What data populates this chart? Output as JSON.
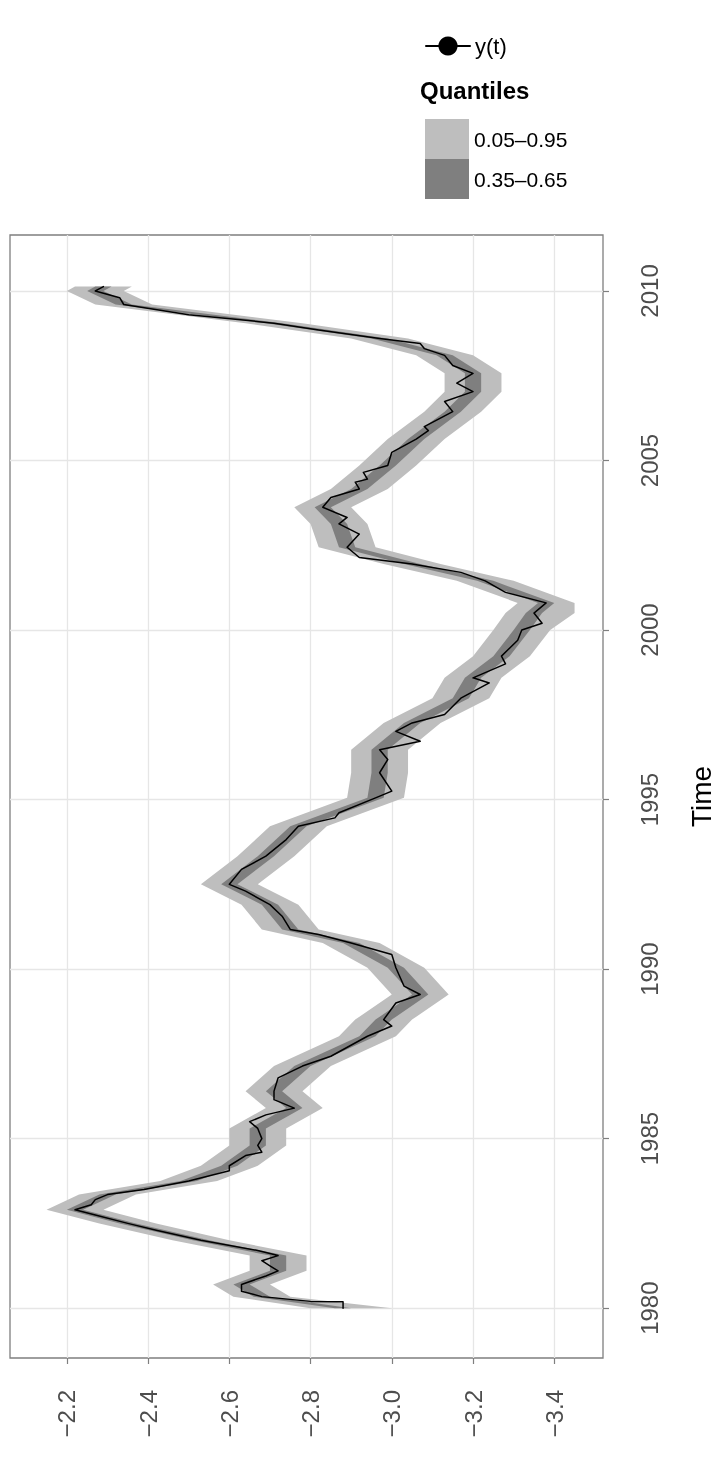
{
  "chart_data": {
    "type": "line",
    "orientation": "horizontal",
    "ylabel": "Time",
    "legend_title": "Quantiles",
    "ylim": [
      1978.53,
      2011.65
    ],
    "yticks": [
      1980,
      1985,
      1990,
      1995,
      2000,
      2005,
      2010
    ],
    "xlim": [
      -2.06,
      -3.52
    ],
    "xticks": [
      {
        "value": -2.2,
        "label": "−2.2"
      },
      {
        "value": -2.4,
        "label": "−2.4"
      },
      {
        "value": -2.6,
        "label": "−2.6"
      },
      {
        "value": -2.8,
        "label": "−2.8"
      },
      {
        "value": -3.0,
        "label": "−3.0"
      },
      {
        "value": -3.2,
        "label": "−3.2"
      },
      {
        "value": -3.4,
        "label": "−3.4"
      }
    ],
    "grid": true,
    "legend": "top right",
    "line_style": "solid",
    "series": [
      {
        "name": "y(t)",
        "color": "#000000",
        "x": [
          1980.0,
          1980.19,
          1980.2,
          1980.34,
          1980.5,
          1980.7,
          1980.95,
          1981.1,
          1981.25,
          1981.4,
          1981.55,
          1981.7,
          1982.0,
          1982.3,
          1982.5,
          1982.75,
          1982.9,
          1983.05,
          1983.2,
          1983.35,
          1983.5,
          1983.75,
          1984.05,
          1984.2,
          1984.5,
          1984.6,
          1984.8,
          1985.0,
          1985.3,
          1985.5,
          1985.7,
          1985.9,
          1986.15,
          1986.4,
          1986.79,
          1987.14,
          1987.43,
          1988.02,
          1988.32,
          1988.51,
          1989.0,
          1989.25,
          1989.5,
          1990.04,
          1990.43,
          1990.77,
          1991.02,
          1991.17,
          1991.56,
          1991.9,
          1992.3,
          1992.5,
          1992.94,
          1993.33,
          1993.82,
          1994.21,
          1994.46,
          1994.61,
          1995.05,
          1995.25,
          1995.79,
          1996.18,
          1996.47,
          1996.72,
          1997.01,
          1997.26,
          1997.51,
          1997.99,
          1998.44,
          1998.59,
          1999.0,
          1999.23,
          1999.7,
          2000.0,
          2000.2,
          2000.5,
          2000.8,
          2001.11,
          2001.45,
          2001.7,
          2001.95,
          2002.14,
          2002.44,
          2002.83,
          2003.13,
          2003.32,
          2003.62,
          2003.91,
          2004.16,
          2004.36,
          2004.45,
          2004.65,
          2004.85,
          2005.24,
          2005.63,
          2005.88,
          2006.0,
          2006.44,
          2006.74,
          2007.03,
          2007.28,
          2007.57,
          2007.8,
          2008.1,
          2008.3,
          2008.45,
          2008.6,
          2008.85,
          2009.05,
          2009.3,
          2009.6,
          2009.8,
          2010.0,
          2010.13
        ],
        "values": [
          -2.88,
          -2.88,
          -2.8,
          -2.68,
          -2.63,
          -2.63,
          -2.69,
          -2.72,
          -2.7,
          -2.68,
          -2.72,
          -2.67,
          -2.53,
          -2.42,
          -2.35,
          -2.27,
          -2.22,
          -2.26,
          -2.27,
          -2.3,
          -2.39,
          -2.5,
          -2.6,
          -2.6,
          -2.64,
          -2.68,
          -2.67,
          -2.68,
          -2.67,
          -2.65,
          -2.69,
          -2.76,
          -2.71,
          -2.71,
          -2.72,
          -2.78,
          -2.85,
          -2.94,
          -3.0,
          -2.98,
          -3.01,
          -3.07,
          -3.03,
          -3.01,
          -3.0,
          -2.9,
          -2.82,
          -2.75,
          -2.73,
          -2.7,
          -2.64,
          -2.6,
          -2.63,
          -2.69,
          -2.74,
          -2.77,
          -2.86,
          -2.87,
          -2.96,
          -3.0,
          -2.97,
          -2.99,
          -2.97,
          -3.07,
          -3.01,
          -3.05,
          -3.13,
          -3.17,
          -3.24,
          -3.2,
          -3.28,
          -3.27,
          -3.31,
          -3.32,
          -3.37,
          -3.35,
          -3.38,
          -3.28,
          -3.23,
          -3.17,
          -3.05,
          -2.92,
          -2.89,
          -2.92,
          -2.87,
          -2.89,
          -2.83,
          -2.85,
          -2.92,
          -2.91,
          -2.94,
          -2.93,
          -2.99,
          -3.0,
          -3.06,
          -3.09,
          -3.08,
          -3.15,
          -3.13,
          -3.2,
          -3.16,
          -3.2,
          -3.15,
          -3.13,
          -3.08,
          -3.07,
          -2.97,
          -2.82,
          -2.71,
          -2.5,
          -2.34,
          -2.33,
          -2.27,
          -2.29
        ]
      },
      {
        "name": "0.05–0.95",
        "color": "#bebebe",
        "x": [
          1980.0,
          1980.34,
          1980.7,
          1981.1,
          1981.55,
          1982.0,
          1982.5,
          1982.9,
          1983.35,
          1983.75,
          1984.2,
          1984.8,
          1985.3,
          1985.9,
          1986.4,
          1987.14,
          1988.02,
          1988.51,
          1989.25,
          1990.04,
          1990.77,
          1991.17,
          1991.9,
          1992.5,
          1993.33,
          1994.21,
          1995.05,
          1995.79,
          1996.47,
          1997.26,
          1997.99,
          1998.59,
          1999.23,
          2000.0,
          2000.5,
          2000.8,
          2001.45,
          2001.95,
          2002.44,
          2003.13,
          2003.62,
          2004.16,
          2004.85,
          2005.63,
          2006.44,
          2007.03,
          2007.57,
          2008.1,
          2008.6,
          2009.05,
          2009.6,
          2010.0,
          2010.13
        ],
        "values": [
          null,
          null,
          null,
          null,
          null,
          null,
          null,
          null,
          null,
          null,
          null,
          null,
          null,
          null,
          null,
          null,
          null,
          null,
          null,
          null,
          null,
          null,
          null,
          null,
          null,
          null,
          null,
          null,
          null,
          null,
          null,
          null,
          null,
          null,
          null,
          null,
          null,
          null,
          null,
          null,
          null,
          null,
          null,
          null,
          null,
          null,
          null,
          null,
          null,
          null,
          null,
          null,
          null
        ],
        "upper": [
          -2.8,
          -2.61,
          -2.56,
          -2.65,
          -2.65,
          -2.46,
          -2.28,
          -2.15,
          -2.23,
          -2.43,
          -2.53,
          -2.6,
          -2.6,
          -2.69,
          -2.64,
          -2.71,
          -2.87,
          -2.91,
          -3.0,
          -2.94,
          -2.83,
          -2.68,
          -2.63,
          -2.53,
          -2.62,
          -2.7,
          -2.89,
          -2.9,
          -2.9,
          -2.98,
          -3.1,
          -3.13,
          -3.2,
          -3.25,
          -3.28,
          -3.31,
          -3.16,
          -2.98,
          -2.82,
          -2.8,
          -2.76,
          -2.85,
          -2.92,
          -2.99,
          -3.08,
          -3.13,
          -3.13,
          -3.06,
          -2.9,
          -2.64,
          -2.27,
          -2.2,
          -2.22
        ],
        "lower": [
          -3.0,
          -2.75,
          -2.7,
          -2.79,
          -2.79,
          -2.6,
          -2.42,
          -2.29,
          -2.37,
          -2.57,
          -2.67,
          -2.74,
          -2.74,
          -2.83,
          -2.78,
          -2.85,
          -3.01,
          -3.05,
          -3.14,
          -3.08,
          -2.97,
          -2.82,
          -2.77,
          -2.67,
          -2.76,
          -2.84,
          -3.03,
          -3.04,
          -3.04,
          -3.12,
          -3.24,
          -3.27,
          -3.34,
          -3.39,
          -3.45,
          -3.45,
          -3.3,
          -3.12,
          -2.96,
          -2.94,
          -2.9,
          -2.99,
          -3.06,
          -3.13,
          -3.22,
          -3.27,
          -3.27,
          -3.2,
          -3.04,
          -2.78,
          -2.41,
          -2.34,
          -2.36
        ]
      },
      {
        "name": "0.35–0.65",
        "color": "#7f7f7f",
        "x": [
          1980.0,
          1980.34,
          1980.7,
          1981.1,
          1981.55,
          1982.0,
          1982.5,
          1982.9,
          1983.35,
          1983.75,
          1984.2,
          1984.8,
          1985.3,
          1985.9,
          1986.4,
          1987.14,
          1988.02,
          1988.51,
          1989.25,
          1990.04,
          1990.77,
          1991.17,
          1991.9,
          1992.5,
          1993.33,
          1994.21,
          1995.05,
          1995.79,
          1996.47,
          1997.26,
          1997.99,
          1998.59,
          1999.23,
          2000.0,
          2000.5,
          2000.8,
          2001.45,
          2001.95,
          2002.44,
          2003.13,
          2003.62,
          2004.16,
          2004.85,
          2005.63,
          2006.44,
          2007.03,
          2007.57,
          2008.1,
          2008.6,
          2009.05,
          2009.6,
          2010.0,
          2010.13
        ],
        "values": [
          null,
          null,
          null,
          null,
          null,
          null,
          null,
          null,
          null,
          null,
          null,
          null,
          null,
          null,
          null,
          null,
          null,
          null,
          null,
          null,
          null,
          null,
          null,
          null,
          null,
          null,
          null,
          null,
          null,
          null,
          null,
          null,
          null,
          null,
          null,
          null,
          null,
          null,
          null,
          null,
          null,
          null,
          null,
          null,
          null,
          null,
          null,
          null,
          null,
          null,
          null,
          null,
          null
        ],
        "upper": [
          -2.86,
          -2.66,
          -2.61,
          -2.7,
          -2.7,
          -2.51,
          -2.33,
          -2.2,
          -2.28,
          -2.48,
          -2.58,
          -2.65,
          -2.65,
          -2.74,
          -2.69,
          -2.76,
          -2.92,
          -2.96,
          -3.05,
          -2.99,
          -2.88,
          -2.73,
          -2.68,
          -2.58,
          -2.67,
          -2.75,
          -2.94,
          -2.95,
          -2.95,
          -3.03,
          -3.15,
          -3.18,
          -3.25,
          -3.3,
          -3.33,
          -3.36,
          -3.21,
          -3.03,
          -2.87,
          -2.85,
          -2.81,
          -2.9,
          -2.97,
          -3.04,
          -3.13,
          -3.18,
          -3.18,
          -3.11,
          -2.95,
          -2.69,
          -2.32,
          -2.25,
          -2.27
        ],
        "lower": [
          -2.9,
          -2.7,
          -2.65,
          -2.74,
          -2.74,
          -2.55,
          -2.37,
          -2.24,
          -2.32,
          -2.52,
          -2.62,
          -2.69,
          -2.69,
          -2.78,
          -2.73,
          -2.8,
          -2.96,
          -3.0,
          -3.09,
          -3.03,
          -2.92,
          -2.77,
          -2.72,
          -2.62,
          -2.71,
          -2.79,
          -2.98,
          -2.99,
          -2.99,
          -3.07,
          -3.19,
          -3.22,
          -3.29,
          -3.34,
          -3.37,
          -3.4,
          -3.25,
          -3.07,
          -2.91,
          -2.89,
          -2.85,
          -2.94,
          -3.01,
          -3.08,
          -3.17,
          -3.22,
          -3.22,
          -3.15,
          -2.99,
          -2.73,
          -2.36,
          -2.29,
          -2.31
        ]
      }
    ]
  }
}
